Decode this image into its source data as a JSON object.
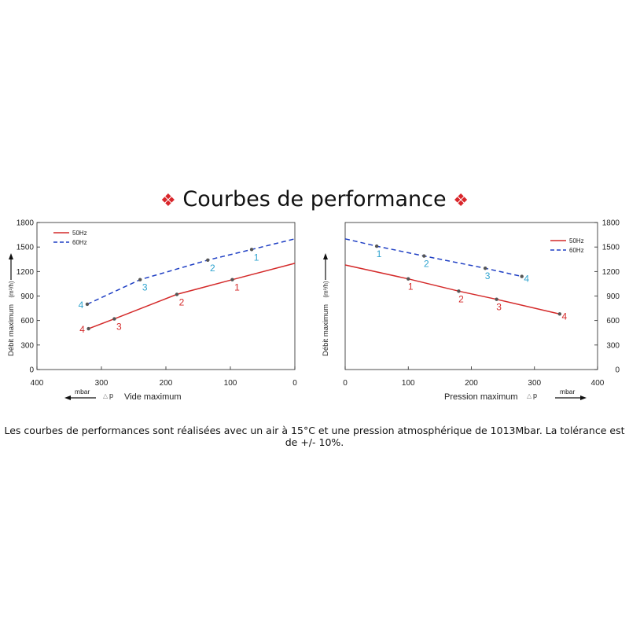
{
  "heading": {
    "ornament_left": "❖",
    "text": "Courbes de performance",
    "ornament_right": "❖",
    "ornament_color": "#d9262b"
  },
  "footnote": "Les courbes de performances sont réalisées avec un air à 15°C et une pression atmosphérique de 1013Mbar. La tolérance est de +/- 10%.",
  "chart_data": [
    {
      "type": "line",
      "title": "",
      "xlabel": "Vide maximum",
      "x_unit": "mbar",
      "x_symbol": "p",
      "ylabel": "Débit maximum",
      "y_unit": "(m³/h)",
      "xlim": [
        400,
        0
      ],
      "ylim": [
        0,
        1800
      ],
      "xticks": [
        400,
        300,
        200,
        100,
        0
      ],
      "yticks": [
        0,
        300,
        600,
        900,
        1200,
        1500,
        1800
      ],
      "y_axis_side": "left",
      "grid": false,
      "legend_position": "top-left",
      "series": [
        {
          "name": "50Hz",
          "color": "#d42a2a",
          "dash": "solid",
          "points": [
            {
              "x": 320,
              "y": 500,
              "label": "4"
            },
            {
              "x": 280,
              "y": 620,
              "label": "3"
            },
            {
              "x": 183,
              "y": 920,
              "label": "2"
            },
            {
              "x": 97,
              "y": 1100,
              "label": "1"
            }
          ],
          "end": {
            "x": 0,
            "y": 1300
          }
        },
        {
          "name": "60Hz",
          "color": "#1f3fc4",
          "dash": "dashed",
          "label_color": "#2ea3cf",
          "points": [
            {
              "x": 322,
              "y": 800,
              "label": "4"
            },
            {
              "x": 240,
              "y": 1100,
              "label": "3"
            },
            {
              "x": 135,
              "y": 1340,
              "label": "2"
            },
            {
              "x": 67,
              "y": 1470,
              "label": "1"
            }
          ],
          "end": {
            "x": 0,
            "y": 1600
          }
        }
      ]
    },
    {
      "type": "line",
      "title": "",
      "xlabel": "Pression maximum",
      "x_unit": "mbar",
      "x_symbol": "p",
      "ylabel": "Débit maximum",
      "y_unit": "(m³/h)",
      "xlim": [
        0,
        400
      ],
      "ylim": [
        0,
        1800
      ],
      "xticks": [
        0,
        100,
        200,
        300,
        400
      ],
      "yticks": [
        0,
        300,
        600,
        900,
        1200,
        1500,
        1800
      ],
      "y_axis_side": "right",
      "grid": false,
      "legend_position": "top-right",
      "series": [
        {
          "name": "50Hz",
          "color": "#d42a2a",
          "dash": "solid",
          "start": {
            "x": 0,
            "y": 1280
          },
          "points": [
            {
              "x": 100,
              "y": 1110,
              "label": "1"
            },
            {
              "x": 180,
              "y": 960,
              "label": "2"
            },
            {
              "x": 240,
              "y": 860,
              "label": "3"
            },
            {
              "x": 340,
              "y": 680,
              "label": "4"
            }
          ]
        },
        {
          "name": "60Hz",
          "color": "#1f3fc4",
          "dash": "dashed",
          "label_color": "#2ea3cf",
          "start": {
            "x": 0,
            "y": 1600
          },
          "points": [
            {
              "x": 50,
              "y": 1510,
              "label": "1"
            },
            {
              "x": 125,
              "y": 1390,
              "label": "2"
            },
            {
              "x": 222,
              "y": 1240,
              "label": "3"
            },
            {
              "x": 280,
              "y": 1140,
              "label": "4"
            }
          ]
        }
      ]
    }
  ]
}
